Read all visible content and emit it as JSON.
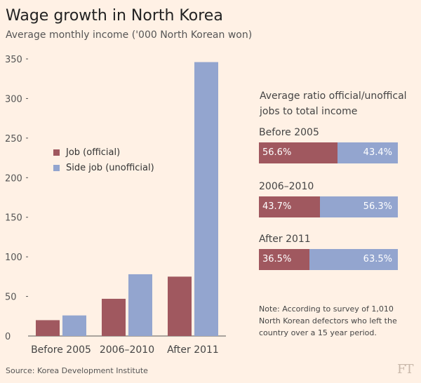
{
  "header": {
    "title": "Wage growth in North Korea",
    "subtitle": "Average monthly income ('000 North Korean won)"
  },
  "colors": {
    "background": "#fff1e5",
    "official": "#a0585f",
    "unofficial": "#93a5cf",
    "axis": "#555555",
    "grid": "#e8ddd2"
  },
  "chart_data": [
    {
      "type": "bar",
      "title": "Wage growth in North Korea",
      "subtitle": "Average monthly income ('000 North Korean won)",
      "categories": [
        "Before 2005",
        "2006–2010",
        "After 2011"
      ],
      "series": [
        {
          "name": "Job (official)",
          "values": [
            20,
            47,
            75
          ]
        },
        {
          "name": "Side job (unofficial)",
          "values": [
            26,
            78,
            346
          ]
        }
      ],
      "yticks": [
        "0",
        "50",
        "100",
        "150",
        "200",
        "250",
        "300",
        "350"
      ],
      "ylim": [
        0,
        350
      ],
      "grid": false,
      "legend": "left-middle"
    },
    {
      "type": "bar",
      "title": "Average ratio official/unoffical jobs to total income",
      "stacked": true,
      "categories": [
        "Before 2005",
        "2006–2010",
        "After 2011"
      ],
      "series": [
        {
          "name": "Job (official)",
          "values": [
            56.6,
            43.7,
            36.5
          ]
        },
        {
          "name": "Side job (unofficial)",
          "values": [
            43.4,
            56.3,
            63.5
          ]
        }
      ],
      "labels_left": [
        "56.6%",
        "43.7%",
        "36.5%"
      ],
      "labels_right": [
        "43.4%",
        "56.3%",
        "63.5%"
      ]
    }
  ],
  "note": "Note: According to survey of 1,010 North Korean defectors who left the country over a 15 year period.",
  "source": "Source: Korea Development Institute",
  "brand": "FT"
}
